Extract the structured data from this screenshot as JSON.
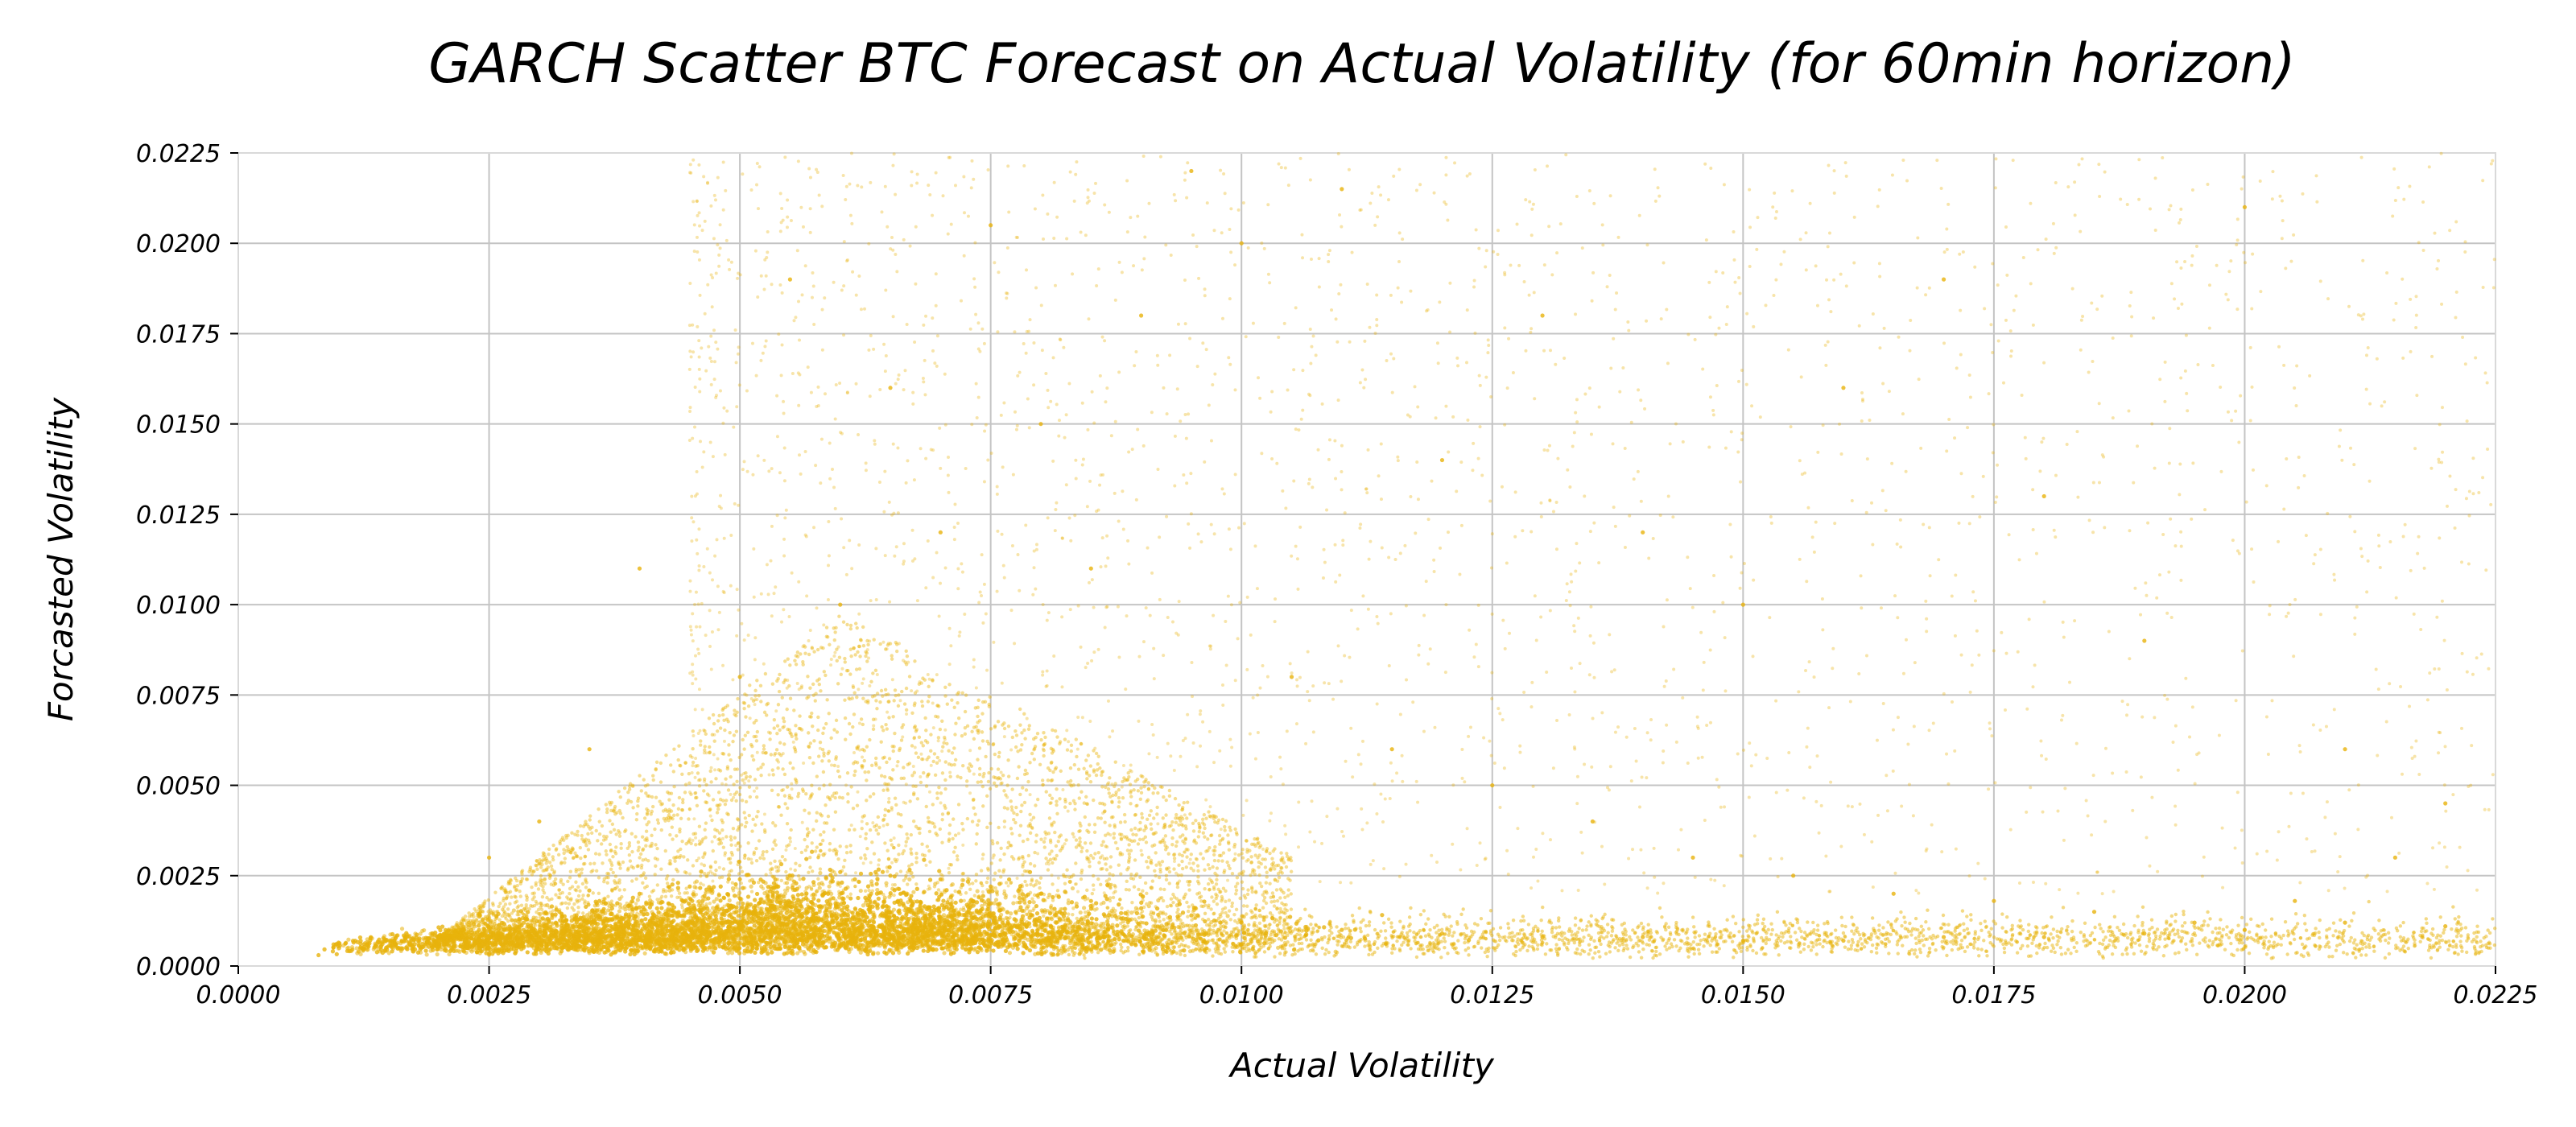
{
  "chart_data": {
    "type": "scatter",
    "title": "GARCH Scatter BTC Forecast on Actual Volatility (for 60min horizon)",
    "xlabel": "Actual Volatility",
    "ylabel": "Forcasted Volatility",
    "xlim": [
      0.0,
      0.0225
    ],
    "ylim": [
      0.0,
      0.0225
    ],
    "grid": true,
    "color": "#E8B30C",
    "x_ticks": [
      "0.0000",
      "0.0025",
      "0.0050",
      "0.0075",
      "0.0100",
      "0.0125",
      "0.0150",
      "0.0175",
      "0.0200",
      "0.0225"
    ],
    "y_ticks": [
      "0.0000",
      "0.0025",
      "0.0050",
      "0.0075",
      "0.0100",
      "0.0125",
      "0.0150",
      "0.0175",
      "0.0200",
      "0.0225"
    ],
    "x_tick_values": [
      0,
      0.0025,
      0.005,
      0.0075,
      0.01,
      0.0125,
      0.015,
      0.0175,
      0.02,
      0.0225
    ],
    "y_tick_values": [
      0,
      0.0025,
      0.005,
      0.0075,
      0.01,
      0.0125,
      0.015,
      0.0175,
      0.02,
      0.0225
    ],
    "series": [
      {
        "points": [
          [
            0.0008,
            0.0003
          ],
          [
            0.0012,
            0.0004
          ],
          [
            0.0016,
            0.0005
          ],
          [
            0.002,
            0.0007
          ],
          [
            0.0024,
            0.001
          ],
          [
            0.0028,
            0.0013
          ],
          [
            0.0032,
            0.0015
          ],
          [
            0.0036,
            0.0018
          ],
          [
            0.004,
            0.002
          ],
          [
            0.0045,
            0.0022
          ],
          [
            0.005,
            0.0024
          ],
          [
            0.0055,
            0.0025
          ],
          [
            0.006,
            0.0026
          ],
          [
            0.0065,
            0.0025
          ],
          [
            0.007,
            0.0024
          ],
          [
            0.0075,
            0.0022
          ],
          [
            0.008,
            0.002
          ],
          [
            0.0085,
            0.0018
          ],
          [
            0.009,
            0.0016
          ],
          [
            0.0095,
            0.0014
          ],
          [
            0.01,
            0.0012
          ],
          [
            0.011,
            0.001
          ],
          [
            0.012,
            0.0009
          ],
          [
            0.013,
            0.0008
          ],
          [
            0.014,
            0.0008
          ],
          [
            0.015,
            0.0007
          ],
          [
            0.016,
            0.0007
          ],
          [
            0.017,
            0.0008
          ],
          [
            0.018,
            0.0008
          ],
          [
            0.019,
            0.0009
          ],
          [
            0.02,
            0.001
          ],
          [
            0.021,
            0.0012
          ],
          [
            0.022,
            0.0011
          ],
          [
            0.005,
            0.008
          ],
          [
            0.006,
            0.01
          ],
          [
            0.007,
            0.012
          ],
          [
            0.008,
            0.015
          ],
          [
            0.009,
            0.018
          ],
          [
            0.01,
            0.02
          ],
          [
            0.011,
            0.0215
          ],
          [
            0.0065,
            0.016
          ],
          [
            0.0075,
            0.0205
          ],
          [
            0.0095,
            0.022
          ],
          [
            0.012,
            0.014
          ],
          [
            0.013,
            0.018
          ],
          [
            0.014,
            0.012
          ],
          [
            0.015,
            0.01
          ],
          [
            0.016,
            0.016
          ],
          [
            0.017,
            0.019
          ],
          [
            0.018,
            0.013
          ],
          [
            0.019,
            0.009
          ],
          [
            0.02,
            0.021
          ],
          [
            0.021,
            0.006
          ],
          [
            0.022,
            0.0045
          ],
          [
            0.004,
            0.011
          ],
          [
            0.0035,
            0.006
          ],
          [
            0.003,
            0.004
          ],
          [
            0.0025,
            0.003
          ],
          [
            0.0055,
            0.019
          ],
          [
            0.0085,
            0.011
          ],
          [
            0.0105,
            0.008
          ],
          [
            0.0115,
            0.006
          ],
          [
            0.0125,
            0.005
          ],
          [
            0.0135,
            0.004
          ],
          [
            0.0145,
            0.003
          ],
          [
            0.0155,
            0.0025
          ],
          [
            0.0165,
            0.002
          ],
          [
            0.0175,
            0.0018
          ],
          [
            0.0185,
            0.0015
          ],
          [
            0.0195,
            0.0012
          ],
          [
            0.0205,
            0.0018
          ],
          [
            0.0215,
            0.003
          ]
        ]
      }
    ]
  }
}
